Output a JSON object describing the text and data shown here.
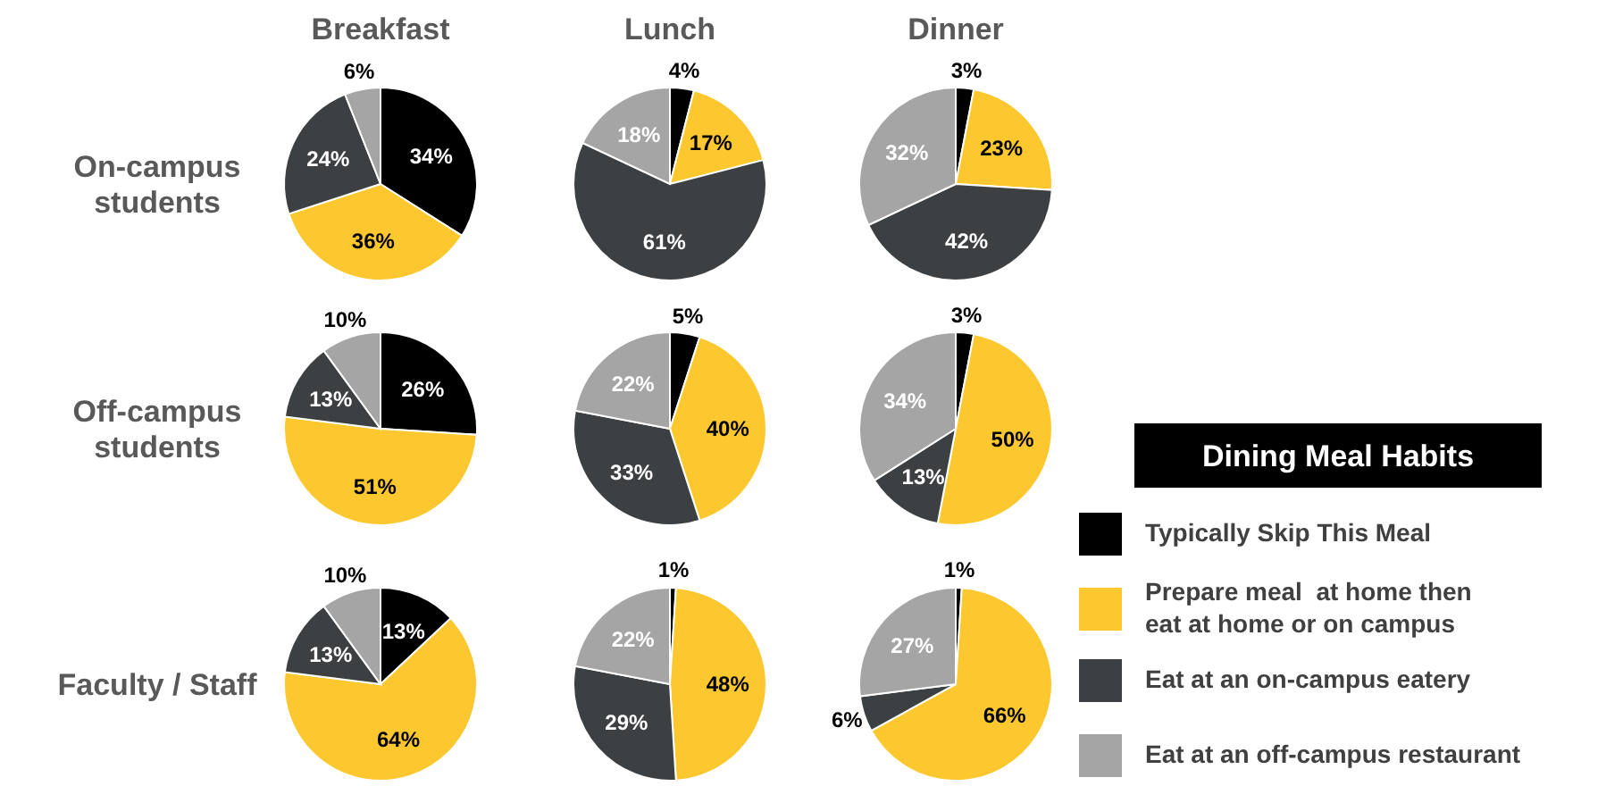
{
  "chart_data": [
    {
      "type": "pie",
      "title": "Breakfast",
      "ylabel": "On-campus\nstudents",
      "values": [
        34,
        36,
        24,
        6
      ],
      "value_labels": [
        "34%",
        "36%",
        "24%",
        "6%"
      ],
      "colors": [
        "#000000",
        "#fdc82f",
        "#3d4042",
        "#a5a5a5"
      ]
    },
    {
      "type": "pie",
      "title": "Lunch",
      "values": [
        4,
        17,
        61,
        18
      ],
      "value_labels": [
        "4%",
        "17%",
        "61%",
        "18%"
      ],
      "colors": [
        "#000000",
        "#fdc82f",
        "#3d4042",
        "#a5a5a5"
      ]
    },
    {
      "type": "pie",
      "title": "Dinner",
      "values": [
        3,
        23,
        42,
        32
      ],
      "value_labels": [
        "3%",
        "23%",
        "42%",
        "32%"
      ],
      "colors": [
        "#000000",
        "#fdc82f",
        "#3d4042",
        "#a5a5a5"
      ]
    },
    {
      "type": "pie",
      "ylabel": "Off-campus\nstudents",
      "values": [
        26,
        51,
        13,
        10
      ],
      "value_labels": [
        "26%",
        "51%",
        "13%",
        "10%"
      ],
      "colors": [
        "#000000",
        "#fdc82f",
        "#3d4042",
        "#a5a5a5"
      ]
    },
    {
      "type": "pie",
      "values": [
        5,
        40,
        33,
        22
      ],
      "value_labels": [
        "5%",
        "40%",
        "33%",
        "22%"
      ],
      "colors": [
        "#000000",
        "#fdc82f",
        "#3d4042",
        "#a5a5a5"
      ]
    },
    {
      "type": "pie",
      "legend": "right",
      "legend_title": "Dining Meal Habits",
      "categories": [
        "Typically Skip This Meal",
        "Prepare meal  at home then\neat at home or on campus",
        "Eat at an on-campus eatery",
        "Eat at an off-campus restaurant"
      ],
      "values": [
        3,
        50,
        13,
        34
      ],
      "value_labels": [
        "3%",
        "50%",
        "13%",
        "34%"
      ],
      "colors": [
        "#000000",
        "#fdc82f",
        "#3d4042",
        "#a5a5a5"
      ]
    },
    {
      "type": "pie",
      "ylabel": "Faculty / Staff",
      "values": [
        13,
        64,
        13,
        10
      ],
      "value_labels": [
        "13%",
        "64%",
        "13%",
        "10%"
      ],
      "colors": [
        "#000000",
        "#fdc82f",
        "#3d4042",
        "#a5a5a5"
      ]
    },
    {
      "type": "pie",
      "values": [
        1,
        48,
        29,
        22
      ],
      "value_labels": [
        "1%",
        "48%",
        "29%",
        "22%"
      ],
      "colors": [
        "#000000",
        "#fdc82f",
        "#3d4042",
        "#a5a5a5"
      ]
    },
    {
      "type": "pie",
      "values": [
        1,
        66,
        6,
        27
      ],
      "value_labels": [
        "1%",
        "66%",
        "6%",
        "27%"
      ],
      "colors": [
        "#000000",
        "#fdc82f",
        "#3d4042",
        "#a5a5a5"
      ]
    }
  ]
}
